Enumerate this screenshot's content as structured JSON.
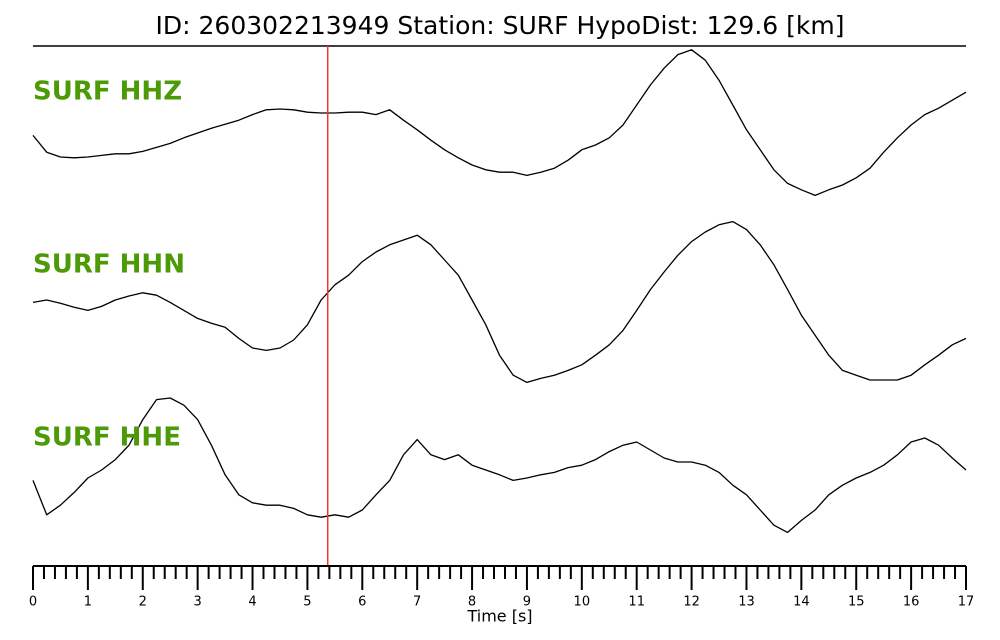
{
  "chart_data": {
    "type": "line",
    "title": "ID: 260302213949   Station: SURF   HypoDist:   129.6 [km]",
    "x_label": "Time [s]",
    "xlim": [
      0,
      17
    ],
    "xticks": [
      0,
      1,
      2,
      3,
      4,
      5,
      6,
      7,
      8,
      9,
      10,
      11,
      12,
      13,
      14,
      15,
      16,
      17
    ],
    "minor_xticks": [
      0.2,
      0.4,
      0.6,
      0.8,
      1.2,
      1.4,
      1.6,
      1.8,
      2.2,
      2.4,
      2.6,
      2.8,
      3.2,
      3.4,
      3.6,
      3.8,
      4.2,
      4.4,
      4.6,
      4.8,
      5.2,
      5.4,
      5.6,
      5.8,
      6.2,
      6.4,
      6.6,
      6.8,
      7.2,
      7.4,
      7.6,
      7.8,
      8.2,
      8.4,
      8.6,
      8.8,
      9.2,
      9.4,
      9.6,
      9.8,
      10.2,
      10.4,
      10.6,
      10.8,
      11.2,
      11.4,
      11.6,
      11.8,
      12.2,
      12.4,
      12.6,
      12.8,
      13.2,
      13.4,
      13.6,
      13.8,
      14.2,
      14.4,
      14.6,
      14.8,
      15.2,
      15.4,
      15.6,
      15.8,
      16.2,
      16.4,
      16.6,
      16.8
    ],
    "ylim": [
      -1.2,
      1.2
    ],
    "label_color": "#4b9a06",
    "marker_line": {
      "x": 5.37,
      "color": "#e8392f"
    },
    "x": [
      0,
      0.25,
      0.5,
      0.75,
      1,
      1.25,
      1.5,
      1.75,
      2,
      2.25,
      2.5,
      2.75,
      3,
      3.25,
      3.5,
      3.75,
      4,
      4.25,
      4.5,
      4.75,
      5,
      5.25,
      5.5,
      5.75,
      6,
      6.25,
      6.5,
      6.75,
      7,
      7.25,
      7.5,
      7.75,
      8,
      8.25,
      8.5,
      8.75,
      9,
      9.25,
      9.5,
      9.75,
      10,
      10.25,
      10.5,
      10.75,
      11,
      11.25,
      11.5,
      11.75,
      12,
      12.25,
      12.5,
      12.75,
      13,
      13.25,
      13.5,
      13.75,
      14,
      14.25,
      14.5,
      14.75,
      15,
      15.25,
      15.5,
      15.75,
      16,
      16.25,
      16.5,
      16.75,
      17
    ],
    "series": [
      {
        "name": "SURF HHZ",
        "color": "#000000",
        "values": [
          -0.13,
          -0.34,
          -0.4,
          -0.41,
          -0.4,
          -0.38,
          -0.36,
          -0.36,
          -0.33,
          -0.28,
          -0.23,
          -0.16,
          -0.1,
          -0.04,
          0.01,
          0.06,
          0.13,
          0.19,
          0.2,
          0.19,
          0.16,
          0.15,
          0.15,
          0.16,
          0.16,
          0.13,
          0.19,
          0.06,
          -0.06,
          -0.19,
          -0.31,
          -0.41,
          -0.5,
          -0.56,
          -0.59,
          -0.59,
          -0.63,
          -0.59,
          -0.54,
          -0.44,
          -0.31,
          -0.25,
          -0.16,
          0,
          0.25,
          0.5,
          0.71,
          0.88,
          0.94,
          0.81,
          0.56,
          0.25,
          -0.06,
          -0.31,
          -0.56,
          -0.73,
          -0.81,
          -0.88,
          -0.81,
          -0.75,
          -0.66,
          -0.54,
          -0.34,
          -0.16,
          0,
          0.13,
          0.21,
          0.31,
          0.41
        ]
      },
      {
        "name": "SURF HHN",
        "color": "#000000",
        "values": [
          -0.03,
          0,
          -0.04,
          -0.09,
          -0.13,
          -0.08,
          0,
          0.05,
          0.09,
          0.06,
          -0.03,
          -0.13,
          -0.23,
          -0.29,
          -0.34,
          -0.48,
          -0.6,
          -0.63,
          -0.6,
          -0.5,
          -0.31,
          0,
          0.19,
          0.31,
          0.48,
          0.6,
          0.69,
          0.75,
          0.81,
          0.69,
          0.5,
          0.31,
          0,
          -0.31,
          -0.69,
          -0.94,
          -1.03,
          -0.98,
          -0.94,
          -0.88,
          -0.81,
          -0.69,
          -0.56,
          -0.38,
          -0.13,
          0.13,
          0.35,
          0.56,
          0.73,
          0.85,
          0.94,
          0.98,
          0.88,
          0.69,
          0.44,
          0.13,
          -0.19,
          -0.44,
          -0.69,
          -0.88,
          -0.94,
          -1,
          -1,
          -1,
          -0.94,
          -0.81,
          -0.69,
          -0.56,
          -0.48
        ]
      },
      {
        "name": "SURF HHE",
        "color": "#000000",
        "values": [
          -0.13,
          -0.56,
          -0.44,
          -0.28,
          -0.1,
          0,
          0.13,
          0.31,
          0.63,
          0.88,
          0.9,
          0.81,
          0.63,
          0.31,
          -0.06,
          -0.31,
          -0.41,
          -0.44,
          -0.44,
          -0.48,
          -0.56,
          -0.59,
          -0.56,
          -0.59,
          -0.5,
          -0.31,
          -0.13,
          0.19,
          0.38,
          0.19,
          0.13,
          0.19,
          0.06,
          0,
          -0.06,
          -0.13,
          -0.1,
          -0.06,
          -0.03,
          0.03,
          0.06,
          0.13,
          0.23,
          0.31,
          0.35,
          0.25,
          0.15,
          0.1,
          0.1,
          0.06,
          -0.03,
          -0.19,
          -0.31,
          -0.5,
          -0.69,
          -0.78,
          -0.63,
          -0.5,
          -0.31,
          -0.19,
          -0.1,
          -0.03,
          0.06,
          0.19,
          0.35,
          0.4,
          0.31,
          0.15,
          0
        ]
      }
    ]
  }
}
